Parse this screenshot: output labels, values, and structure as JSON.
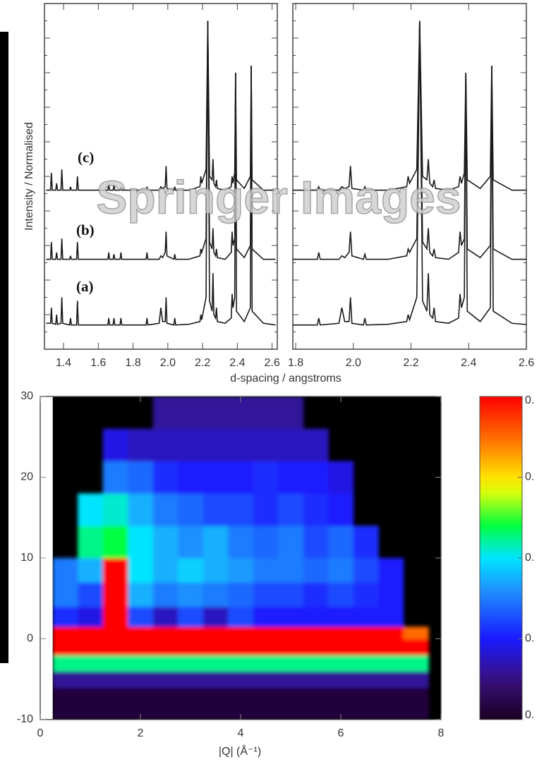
{
  "chart_data": [
    {
      "type": "line",
      "y_label": "Intensity / Normalised",
      "x_label": "d-spacing / angstroms",
      "watermark": "Springer Images",
      "x": [
        1.3,
        1.325,
        1.33,
        1.335,
        1.355,
        1.36,
        1.365,
        1.385,
        1.39,
        1.395,
        1.435,
        1.44,
        1.445,
        1.475,
        1.48,
        1.485,
        1.6,
        1.655,
        1.66,
        1.665,
        1.685,
        1.69,
        1.695,
        1.725,
        1.73,
        1.735,
        1.8,
        1.875,
        1.88,
        1.885,
        1.95,
        1.96,
        1.97,
        1.985,
        1.99,
        1.995,
        2.035,
        2.04,
        2.045,
        2.12,
        2.185,
        2.19,
        2.195,
        2.22,
        2.23,
        2.24,
        2.255,
        2.26,
        2.265,
        2.275,
        2.28,
        2.285,
        2.33,
        2.365,
        2.37,
        2.375,
        2.385,
        2.39,
        2.395,
        2.44,
        2.475,
        2.48,
        2.485,
        2.55,
        2.62
      ],
      "series": [
        {
          "name": "(c)",
          "color": "#1a1a1a",
          "values": [
            4.6,
            4.6,
            5.1,
            4.6,
            4.6,
            4.8,
            4.6,
            4.6,
            5.2,
            4.6,
            4.6,
            4.7,
            4.6,
            4.6,
            5.0,
            4.6,
            4.6,
            4.6,
            4.8,
            4.6,
            4.6,
            4.75,
            4.6,
            4.6,
            4.7,
            4.6,
            4.6,
            4.6,
            4.7,
            4.6,
            4.6,
            4.7,
            4.65,
            4.7,
            5.3,
            4.65,
            4.6,
            4.7,
            4.6,
            4.6,
            4.7,
            5.0,
            4.8,
            5.2,
            9.5,
            5.0,
            4.9,
            5.5,
            4.8,
            4.7,
            4.9,
            4.65,
            4.6,
            4.7,
            5.0,
            4.8,
            5.1,
            8.0,
            4.9,
            4.65,
            5.0,
            8.2,
            4.9,
            4.6,
            4.6
          ]
        },
        {
          "name": "(b)",
          "color": "#1a1a1a",
          "values": [
            2.6,
            2.6,
            3.1,
            2.6,
            2.6,
            2.8,
            2.6,
            2.6,
            3.2,
            2.6,
            2.6,
            2.7,
            2.6,
            2.6,
            3.1,
            2.6,
            2.6,
            2.6,
            2.8,
            2.6,
            2.6,
            2.75,
            2.6,
            2.6,
            2.8,
            2.6,
            2.6,
            2.6,
            2.8,
            2.6,
            2.6,
            2.7,
            2.65,
            2.8,
            3.4,
            2.7,
            2.6,
            2.75,
            2.6,
            2.6,
            2.7,
            2.9,
            2.8,
            3.2,
            9.5,
            3.1,
            2.9,
            3.5,
            2.8,
            2.7,
            2.9,
            2.65,
            2.6,
            2.8,
            3.4,
            3.0,
            3.2,
            8.0,
            2.9,
            2.65,
            3.0,
            8.2,
            2.9,
            2.6,
            2.6
          ]
        },
        {
          "name": "(a)",
          "color": "#1a1a1a",
          "values": [
            0.75,
            0.75,
            1.2,
            0.75,
            0.72,
            1.0,
            0.72,
            0.75,
            1.5,
            0.75,
            0.7,
            0.9,
            0.7,
            0.7,
            1.4,
            0.7,
            0.7,
            0.7,
            0.9,
            0.7,
            0.7,
            0.9,
            0.7,
            0.7,
            0.9,
            0.7,
            0.7,
            0.7,
            0.9,
            0.7,
            0.75,
            1.2,
            0.8,
            0.8,
            1.5,
            0.75,
            0.7,
            0.9,
            0.7,
            0.72,
            0.8,
            1.0,
            0.85,
            1.5,
            9.5,
            1.4,
            1.1,
            2.2,
            1.0,
            0.9,
            1.2,
            0.8,
            0.75,
            0.9,
            1.6,
            1.2,
            1.5,
            8.0,
            1.1,
            0.8,
            1.2,
            8.2,
            1.1,
            0.75,
            0.7
          ]
        }
      ],
      "ylim": [
        0,
        10
      ],
      "panels": [
        {
          "xlim": [
            1.29,
            2.63
          ],
          "xticks": [
            1.4,
            1.6,
            1.8,
            {
              "value": 2,
              "label": "2.0"
            },
            2.2,
            2.4,
            2.6
          ]
        },
        {
          "xlim": [
            1.79,
            2.6
          ],
          "xticks": [
            1.8,
            {
              "value": 2,
              "label": "2.0"
            },
            2.2,
            2.4,
            2.6
          ]
        }
      ]
    },
    {
      "type": "heatmap",
      "x_label": "|Q| (Å⁻¹)",
      "x_edges": [
        0.25,
        0.75,
        1.25,
        1.75,
        2.25,
        2.75,
        3.25,
        3.75,
        4.25,
        4.75,
        5.25,
        5.75,
        6.25,
        6.75,
        7.25,
        7.75,
        8.25
      ],
      "y_edges": [
        -10,
        -6,
        -4,
        -2,
        0,
        1.5,
        4,
        7,
        10,
        14,
        18,
        22,
        26,
        30
      ],
      "z": [
        [
          0.03,
          0.03,
          0.03,
          0.03,
          0.03,
          0.03,
          0.03,
          0.03,
          0.03,
          0.03,
          0.03,
          0.03,
          0.03,
          0.03,
          0.03,
          null
        ],
        [
          0.12,
          0.12,
          0.12,
          0.12,
          0.12,
          0.12,
          0.12,
          0.12,
          0.12,
          0.12,
          0.12,
          0.12,
          0.12,
          0.12,
          0.12,
          null
        ],
        [
          0.45,
          0.45,
          0.45,
          0.45,
          0.45,
          0.45,
          0.45,
          0.45,
          0.45,
          0.45,
          0.45,
          0.45,
          0.45,
          0.45,
          0.45,
          null
        ],
        [
          0.8,
          0.8,
          0.8,
          0.8,
          0.8,
          0.8,
          0.8,
          0.8,
          0.8,
          0.8,
          0.8,
          0.8,
          0.8,
          0.8,
          0.8,
          null
        ],
        [
          0.8,
          0.8,
          0.8,
          0.8,
          0.8,
          0.8,
          0.8,
          0.8,
          0.8,
          0.8,
          0.8,
          0.8,
          0.8,
          0.8,
          0.7,
          null
        ],
        [
          0.22,
          0.18,
          0.8,
          0.25,
          0.15,
          0.25,
          0.15,
          0.25,
          0.2,
          0.2,
          0.2,
          0.2,
          0.2,
          0.2,
          null,
          null
        ],
        [
          0.3,
          0.25,
          0.8,
          0.35,
          0.3,
          0.32,
          0.3,
          0.28,
          0.25,
          0.25,
          0.22,
          0.25,
          0.22,
          0.2,
          null,
          null
        ],
        [
          0.3,
          0.35,
          0.8,
          0.4,
          0.35,
          0.38,
          0.35,
          0.33,
          0.3,
          0.3,
          0.28,
          0.3,
          0.25,
          0.2,
          null,
          null
        ],
        [
          null,
          0.45,
          0.48,
          0.4,
          0.35,
          0.32,
          0.35,
          0.3,
          0.28,
          0.3,
          0.25,
          0.28,
          0.22,
          null,
          null,
          null
        ],
        [
          null,
          0.4,
          0.42,
          0.35,
          0.3,
          0.28,
          0.25,
          0.25,
          0.22,
          0.25,
          0.22,
          0.2,
          null,
          null,
          null,
          null
        ],
        [
          null,
          null,
          0.3,
          0.28,
          0.22,
          0.2,
          0.2,
          0.2,
          0.22,
          0.2,
          0.2,
          0.18,
          null,
          null,
          null,
          null
        ],
        [
          null,
          null,
          0.18,
          0.15,
          0.15,
          0.15,
          0.15,
          0.15,
          0.15,
          0.15,
          0.15,
          null,
          null,
          null,
          null,
          null
        ],
        [
          null,
          null,
          null,
          null,
          0.12,
          0.12,
          0.12,
          0.12,
          0.12,
          0.12,
          null,
          null,
          null,
          null,
          null,
          null
        ]
      ],
      "xlim": [
        0,
        8
      ],
      "xticks": [
        0,
        2,
        4,
        6,
        8
      ],
      "ylim": [
        -10,
        30
      ],
      "yticks": [
        -10,
        0,
        10,
        20,
        30
      ],
      "zlim": [
        0,
        0.8
      ],
      "zticks": [
        {
          "value": 0,
          "label": "0."
        },
        {
          "value": 0.2,
          "label": "0."
        },
        {
          "value": 0.4,
          "label": "0."
        },
        {
          "value": 0.6,
          "label": "0."
        },
        {
          "value": 0.8,
          "label": "0."
        }
      ]
    }
  ]
}
